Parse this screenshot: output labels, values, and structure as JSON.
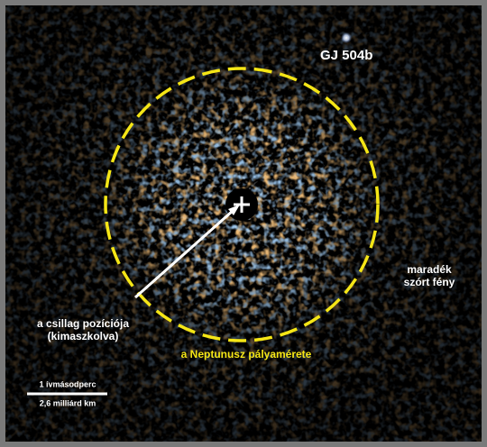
{
  "labels": {
    "planet": "GJ 504b",
    "scattered_light": [
      "maradék",
      "szórt fény"
    ],
    "star_position": [
      "a csillag pozíciója",
      "(kimaszkolva)"
    ],
    "orbit": "a Neptunusz pályamérete",
    "scale_top": "1 ívmásodperc",
    "scale_bottom": "2,6 milliárd km"
  }
}
